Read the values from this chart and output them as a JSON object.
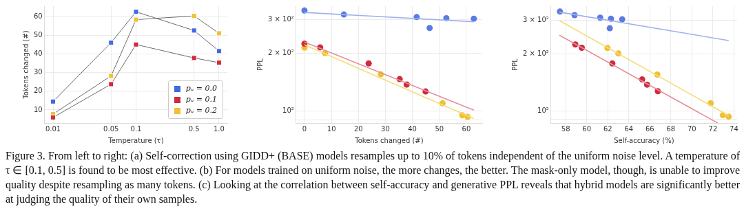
{
  "chart_data": [
    {
      "type": "line",
      "xlabel": "Temperature (τ)",
      "ylabel": "Tokens changed (#)",
      "log": "x",
      "grid": true,
      "marker": "square",
      "legend": "bottom right",
      "x": [
        0.01,
        0.05,
        0.1,
        0.5,
        1.0
      ],
      "xlim": [
        0.0079,
        1.26
      ],
      "xticks": [
        0.01,
        0.05,
        0.1,
        0.5,
        {
          "value": 1.0,
          "label": "1.0"
        }
      ],
      "ylim": [
        3,
        65.5
      ],
      "yticks": [
        10,
        20,
        30,
        40,
        50,
        60
      ],
      "series": [
        {
          "name": "pᵤ = 0.0",
          "color": "#4169e1",
          "values": [
            14.5,
            46,
            62.5,
            52.5,
            41.5
          ]
        },
        {
          "name": "pᵤ = 0.1",
          "color": "#d1293d",
          "values": [
            6,
            23.8,
            45,
            37.8,
            35.3
          ]
        },
        {
          "name": "pᵤ = 0.2",
          "color": "#f0c132",
          "values": [
            7.8,
            28.2,
            58.3,
            60.3,
            51
          ]
        }
      ],
      "annotations": [
        "Figure 3. From left to right: (a) Self-correction using GIDD+ (BASE) models resamples up to 10% of tokens independent of the uniform noise level. A temperature of τ ∈ [0.1, 0.5] is found to be most effective. (b) For models trained on uniform noise, the more changes, the better. The mask-only model, though, is unable to improve quality despite resampling as many tokens. (c) Looking at the correlation between self-accuracy and generative PPL reveals that hybrid models are significantly better at judging the quality of their own samples."
      ]
    },
    {
      "type": "scatter",
      "xlabel": "Tokens changed (#)",
      "ylabel": "PPL",
      "log": "y",
      "grid": true,
      "marker": "circle",
      "xlim": [
        -3.1,
        65.9
      ],
      "xticks": [
        0,
        10,
        20,
        30,
        40,
        50,
        60
      ],
      "ylim": [
        86.7,
        352
      ],
      "yticks": [
        {
          "value": 90,
          "label": null
        },
        {
          "value": 100,
          "label": "10²"
        },
        {
          "value": 200,
          "label": "2 × 10²"
        },
        {
          "value": 300,
          "label": "3 × 10²"
        }
      ],
      "series": [
        {
          "type": "line",
          "marker": "none",
          "color": "#9fb0ef",
          "x": [
            0,
            62.8
          ],
          "values": [
            326.6,
            292
          ]
        },
        {
          "type": "line",
          "marker": "none",
          "color": "#e8909b",
          "x": [
            0,
            62.8
          ],
          "values": [
            228.9,
            101.2
          ]
        },
        {
          "type": "line",
          "marker": "none",
          "color": "#f5dc7c",
          "x": [
            0,
            62.8
          ],
          "values": [
            221.3,
            91.5
          ]
        },
        {
          "color": "#5a7be3",
          "x": [
            0,
            14.6,
            41.6,
            46.4,
            52.6,
            62.8
          ],
          "values": [
            334,
            318.6,
            309,
            271,
            305,
            303
          ]
        },
        {
          "color": "#d1293d",
          "x": [
            0,
            5.8,
            23.8,
            35.3,
            37.9,
            44.9
          ],
          "values": [
            224.4,
            214.8,
            177.3,
            146.8,
            137.5,
            126.6
          ]
        },
        {
          "color": "#f0c132",
          "x": [
            0,
            7.6,
            28.3,
            51.2,
            58.5,
            60.5
          ],
          "values": [
            214.2,
            200.4,
            155.5,
            109.8,
            95.1,
            93.3
          ]
        }
      ]
    },
    {
      "type": "scatter",
      "xlabel": "Self-accuracy (%)",
      "ylabel": "PPL",
      "log": "y",
      "grid": true,
      "marker": "circle",
      "xlim": [
        56.6,
        74.3
      ],
      "xticks": [
        58,
        60,
        62,
        64,
        66,
        68,
        70,
        72,
        74
      ],
      "ylim": [
        86.3,
        356.5
      ],
      "yticks": [
        {
          "value": 90,
          "label": null
        },
        {
          "value": 100,
          "label": "10²"
        },
        {
          "value": 200,
          "label": "2 × 10²"
        },
        {
          "value": 300,
          "label": "3 × 10²"
        }
      ],
      "series": [
        {
          "type": "line",
          "marker": "none",
          "color": "#9fb0ef",
          "x": [
            57.4,
            73.5
          ],
          "values": [
            331.8,
            234.9
          ]
        },
        {
          "type": "line",
          "marker": "none",
          "color": "#e8909b",
          "x": [
            57.4,
            72.46
          ],
          "values": [
            250.5,
            86.3
          ]
        },
        {
          "type": "line",
          "marker": "none",
          "color": "#f5dc7c",
          "x": [
            57.4,
            73.5
          ],
          "values": [
            299.2,
            94.4
          ]
        },
        {
          "color": "#5a7be3",
          "x": [
            57.45,
            58.84,
            61.28,
            62.3,
            62.19,
            63.37
          ],
          "values": [
            334,
            320,
            310,
            306,
            272.7,
            304
          ]
        },
        {
          "color": "#d1293d",
          "x": [
            58.91,
            59.53,
            62.43,
            65.27,
            65.74,
            66.76
          ],
          "values": [
            224.1,
            215.2,
            177.8,
            146.5,
            137.5,
            126.9
          ]
        },
        {
          "color": "#f0c132",
          "x": [
            61.97,
            63.01,
            66.71,
            71.79,
            72.94,
            73.5
          ],
          "values": [
            214.6,
            200.7,
            155.4,
            109.8,
            94.9,
            93.2
          ]
        }
      ]
    }
  ]
}
